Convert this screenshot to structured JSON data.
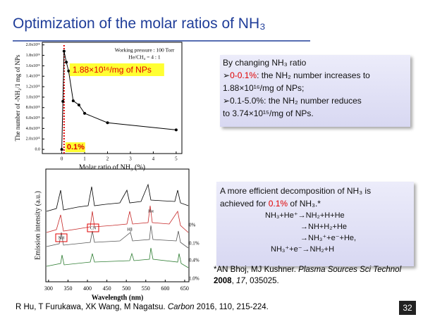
{
  "title": "Optimization of the molar ratios of NH₃",
  "chart_data": {
    "type": "line",
    "x_label": "Molar ratio of NH₃ (%)",
    "y_label": "The number of -NH₂/1 mg of NPs",
    "legend_lines": [
      "Working pressure : 100 Torr",
      "He/CH₄ = 4 : 1"
    ],
    "x": [
      0,
      0.05,
      0.1,
      0.2,
      0.3,
      0.5,
      0.75,
      1,
      2,
      5
    ],
    "series": [
      {
        "color": "#000000",
        "values": [
          0,
          9200000000000000.0,
          1.88e+16,
          1.67e+16,
          1.5e+16,
          9300000000000000.0,
          8500000000000000.0,
          6900000000000000.0,
          5100000000000000.0,
          3740000000000000.0
        ]
      }
    ],
    "xlim": [
      -0.85,
      5.25
    ],
    "ylim": [
      -800000000000000.0,
      2.05e+16
    ],
    "xticks": [
      0,
      1,
      2,
      3,
      4,
      5
    ],
    "yticks": [
      {
        "value": 0,
        "label": "0.0"
      },
      {
        "value": 2000000000000000.0,
        "label": "2.0x10¹⁵"
      },
      {
        "value": 4000000000000000.0,
        "label": "4.0x10¹⁵"
      },
      {
        "value": 6000000000000000.0,
        "label": "6.0x10¹⁵"
      },
      {
        "value": 8000000000000000.0,
        "label": "8.0x10¹⁵"
      },
      {
        "value": 1e+16,
        "label": "1.0x10¹⁶"
      },
      {
        "value": 1.2e+16,
        "label": "1.2x10¹⁶"
      },
      {
        "value": 1.4e+16,
        "label": "1.4x10¹⁶"
      },
      {
        "value": 1.6e+16,
        "label": "1.6x10¹⁶"
      },
      {
        "value": 1.8e+16,
        "label": "1.8x10¹⁶"
      },
      {
        "value": 2e+16,
        "label": "2.0x10¹⁶"
      }
    ],
    "peak_annotation": "1.88×10¹⁶/mg of NPs",
    "highlight": {
      "x": 0.1,
      "label": "0.1%",
      "color": "#e00000"
    }
  },
  "spectrum": {
    "x_label": "Wavelength (nm)",
    "y_label": "Emission intensity (a.u.)",
    "xlim": [
      293,
      661
    ],
    "xticks": [
      300,
      350,
      400,
      450,
      500,
      550,
      600,
      650
    ],
    "peak_labels": [
      "NH",
      "CN",
      "Hβ",
      "Hα"
    ],
    "curve_labels": [
      "0%",
      "0.1%",
      "0.4%",
      "1.0%"
    ]
  },
  "box1": {
    "lines": [
      [
        {
          "t": "By changing NH₃ ratio"
        }
      ],
      [
        {
          "t": "➢"
        },
        {
          "t": "0-0.1%",
          "color": "#e00000"
        },
        {
          "t": ": the NH₂ number increases to"
        }
      ],
      [
        {
          "t": "1.88×10¹⁶/mg of NPs;"
        }
      ],
      [
        {
          "t": "➢0.1-5.0%: the NH₂ number reduces"
        }
      ],
      [
        {
          "t": "to 3.74×10¹⁵/mg of NPs."
        }
      ]
    ]
  },
  "box2": {
    "lines": [
      [
        {
          "t": "A more efficient decomposition of NH₃ is"
        }
      ],
      [
        {
          "t": "achieved for "
        },
        {
          "t": "0.1%",
          "color": "#e00000"
        },
        {
          "t": " of NH₃.*"
        }
      ]
    ],
    "reactions": [
      "NH₃+He⁺→NH₂+H+He",
      "→NH+H₂+He",
      "→NH₃⁺+e⁻+He,",
      "NH₃⁺+e⁻→NH₂+H"
    ]
  },
  "reference": [
    {
      "t": "*AN Bhoj, MJ Kushner. "
    },
    {
      "t": "Plasma Sources Sci Technol",
      "italic": true
    },
    {
      "t": " "
    },
    {
      "t": "2008",
      "bold": true
    },
    {
      "t": ", "
    },
    {
      "t": "17",
      "italic": true
    },
    {
      "t": ", 035025."
    }
  ],
  "footer": [
    {
      "t": "R Hu, T Furukawa, XK Wang, M Nagatsu. "
    },
    {
      "t": "Carbon",
      "italic": true
    },
    {
      "t": " 2016, 110, 215-224."
    }
  ],
  "page_number": "32"
}
